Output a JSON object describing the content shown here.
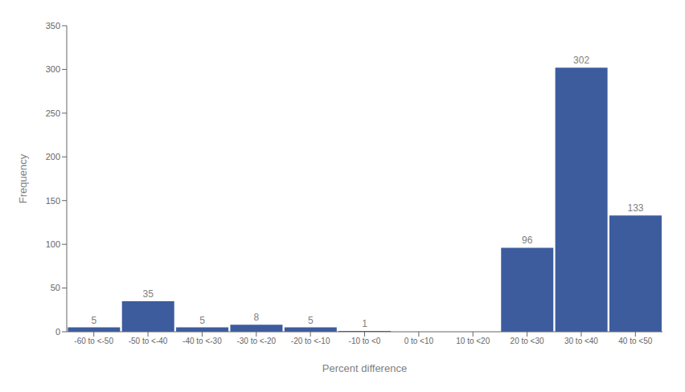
{
  "chart_data": {
    "type": "bar",
    "categories": [
      "-60 to <-50",
      "-50 to <-40",
      "-40 to <-30",
      "-30 to <-20",
      "-20 to <-10",
      "-10 to <0",
      "0 to <10",
      "10 to <20",
      "20 to <30",
      "30 to <40",
      "40 to <50"
    ],
    "values": [
      5,
      35,
      5,
      8,
      5,
      1,
      0,
      0,
      96,
      302,
      133
    ],
    "color": "#3d5c9e",
    "xlabel": "Percent difference",
    "ylabel": "Frequency",
    "ylim": [
      0,
      350
    ],
    "yticks": [
      0,
      50,
      100,
      150,
      200,
      250,
      300,
      350
    ],
    "grid": false,
    "data_labels": true
  }
}
